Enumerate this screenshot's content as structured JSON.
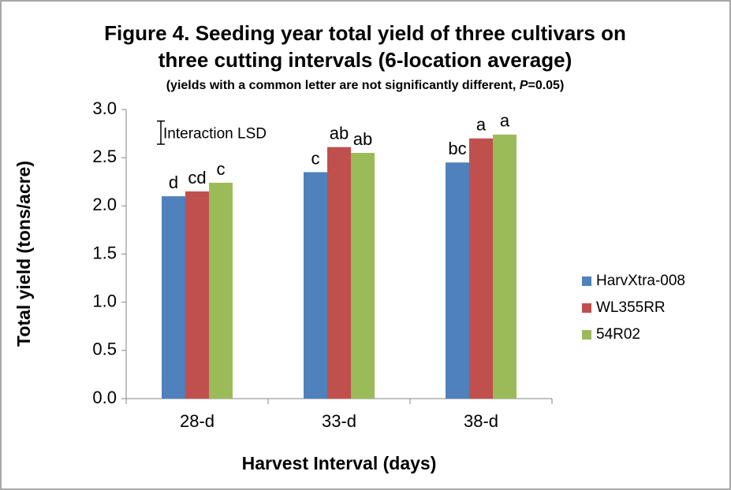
{
  "chart_data": {
    "type": "bar",
    "title": [
      "Figure 4. Seeding year total yield of three cultivars on",
      "three cutting intervals (6-location average)"
    ],
    "subtitle": [
      "(yields with a common letter are not significantly different, ",
      "P",
      "=0.05)"
    ],
    "x_label": "Harvest Interval (days)",
    "y_label": "Total  yield (tons/acre)",
    "categories": [
      "28-d",
      "33-d",
      "38-d"
    ],
    "series": [
      {
        "name": "HarvXtra-008",
        "color": "#4f81bd",
        "values": [
          2.1,
          2.35,
          2.45
        ],
        "letters": [
          "d",
          "c",
          "bc"
        ]
      },
      {
        "name": "WL355RR",
        "color": "#c0504d",
        "values": [
          2.15,
          2.61,
          2.7
        ],
        "letters": [
          "cd",
          "ab",
          "a"
        ]
      },
      {
        "name": "54R02",
        "color": "#9bbb59",
        "values": [
          2.24,
          2.55,
          2.74
        ],
        "letters": [
          "c",
          "ab",
          "a"
        ]
      }
    ],
    "lsd": {
      "label": "Interaction LSD",
      "low": 2.64,
      "high": 2.88
    },
    "ylim": [
      0,
      3
    ],
    "yticks": [
      {
        "value": 0,
        "label": "0.0"
      },
      {
        "value": 0.5,
        "label": "0.5"
      },
      {
        "value": 1,
        "label": "1.0"
      },
      {
        "value": 1.5,
        "label": "1.5"
      },
      {
        "value": 2,
        "label": "2.0"
      },
      {
        "value": 2.5,
        "label": "2.5"
      },
      {
        "value": 3,
        "label": "3.0"
      }
    ],
    "grid": false,
    "legend": "right"
  }
}
